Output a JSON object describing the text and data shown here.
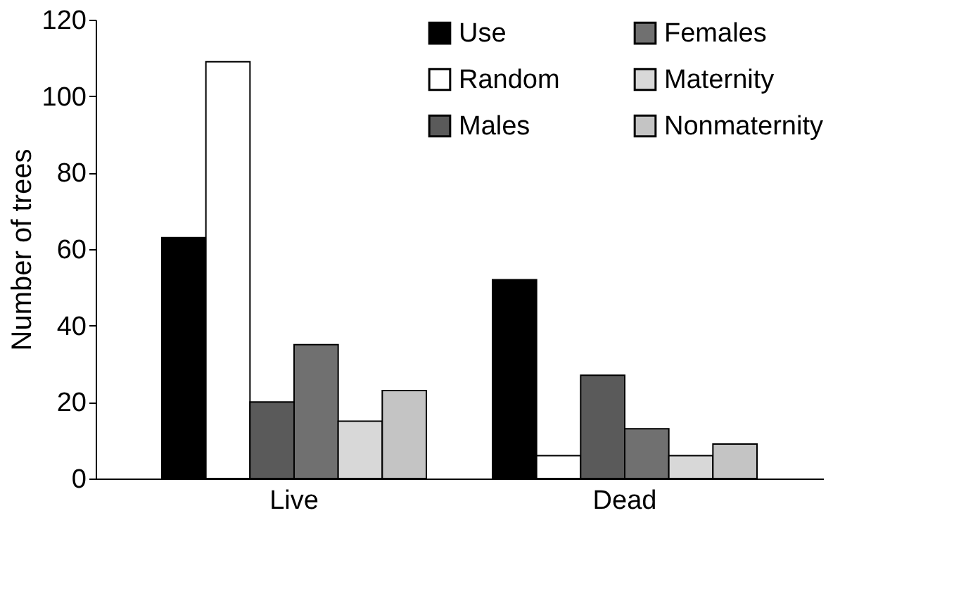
{
  "chart_data": {
    "type": "bar",
    "ylabel": "Number of trees",
    "categories": [
      "Live",
      "Dead"
    ],
    "series": [
      {
        "name": "Use",
        "color": "#000000",
        "values": [
          63,
          52
        ]
      },
      {
        "name": "Random",
        "color": "#ffffff",
        "values": [
          109,
          6
        ]
      },
      {
        "name": "Males",
        "color": "#5a5a5a",
        "values": [
          20,
          27
        ]
      },
      {
        "name": "Females",
        "color": "#707070",
        "values": [
          35,
          13
        ]
      },
      {
        "name": "Maternity",
        "color": "#d8d8d8",
        "values": [
          15,
          6
        ]
      },
      {
        "name": "Nonmaternity",
        "color": "#c4c4c4",
        "values": [
          23,
          9
        ]
      }
    ],
    "ylim": [
      0,
      120
    ],
    "yticks": [
      0,
      20,
      40,
      60,
      80,
      100,
      120
    ],
    "grid": false,
    "legend": "top right"
  }
}
